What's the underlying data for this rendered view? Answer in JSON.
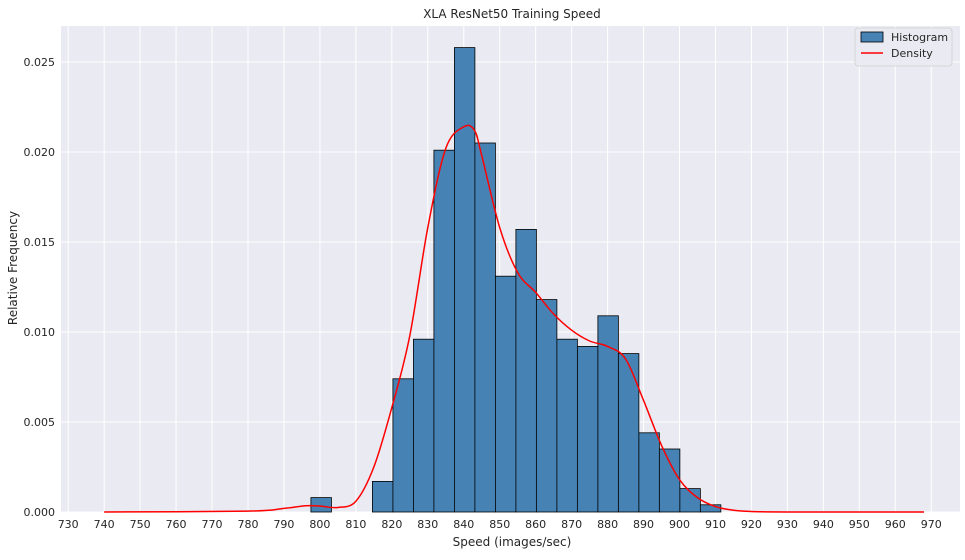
{
  "chart_data": {
    "type": "bar",
    "title": "XLA ResNet50 Training Speed",
    "xlabel": "Speed (images/sec)",
    "ylabel": "Relative Frequency",
    "xlim": [
      728,
      978
    ],
    "ylim": [
      0,
      0.027
    ],
    "grid": true,
    "legend_position": "top-right",
    "x_ticks": [
      730,
      740,
      750,
      760,
      770,
      780,
      790,
      800,
      810,
      820,
      830,
      840,
      850,
      860,
      870,
      880,
      890,
      900,
      910,
      920,
      930,
      940,
      950,
      960,
      970
    ],
    "y_ticks": [
      0.0,
      0.005,
      0.01,
      0.015,
      0.02,
      0.025
    ],
    "y_tick_labels": [
      "0.000",
      "0.005",
      "0.010",
      "0.015",
      "0.020",
      "0.025"
    ],
    "histogram": {
      "name": "Histogram",
      "bin_width": 5.7,
      "bins": [
        {
          "x0": 797.5,
          "value": 0.0008
        },
        {
          "x0": 814.6,
          "value": 0.0017
        },
        {
          "x0": 820.3,
          "value": 0.0074
        },
        {
          "x0": 826.0,
          "value": 0.0096
        },
        {
          "x0": 831.7,
          "value": 0.0201
        },
        {
          "x0": 837.4,
          "value": 0.0258
        },
        {
          "x0": 843.1,
          "value": 0.0205
        },
        {
          "x0": 848.8,
          "value": 0.0131
        },
        {
          "x0": 854.5,
          "value": 0.0157
        },
        {
          "x0": 860.2,
          "value": 0.0118
        },
        {
          "x0": 865.9,
          "value": 0.0096
        },
        {
          "x0": 871.6,
          "value": 0.0092
        },
        {
          "x0": 877.3,
          "value": 0.0109
        },
        {
          "x0": 883.0,
          "value": 0.0088
        },
        {
          "x0": 888.7,
          "value": 0.0044
        },
        {
          "x0": 894.4,
          "value": 0.0035
        },
        {
          "x0": 900.1,
          "value": 0.0013
        },
        {
          "x0": 905.8,
          "value": 0.0004
        }
      ]
    },
    "density": {
      "name": "Density",
      "x": [
        740,
        780,
        790,
        796,
        800,
        805,
        810,
        815,
        820,
        825,
        830,
        835,
        840,
        843,
        845,
        850,
        855,
        860,
        865,
        870,
        875,
        880,
        885,
        890,
        895,
        900,
        905,
        910,
        915,
        920,
        930,
        968
      ],
      "y": [
        0.0,
        5e-05,
        0.0002,
        0.00035,
        0.00033,
        0.00025,
        0.0006,
        0.0025,
        0.0058,
        0.0098,
        0.0158,
        0.0202,
        0.0214,
        0.0212,
        0.0198,
        0.0158,
        0.0133,
        0.0122,
        0.011,
        0.0101,
        0.0095,
        0.0092,
        0.0085,
        0.0062,
        0.0037,
        0.0018,
        0.0008,
        0.0003,
        0.0001,
        3e-05,
        0.0,
        0.0
      ]
    },
    "colors": {
      "background": "#eaeaf2",
      "grid": "#ffffff",
      "bar_fill": "#4682b4",
      "bar_edge": "#000000",
      "density_line": "#ff0000"
    }
  }
}
